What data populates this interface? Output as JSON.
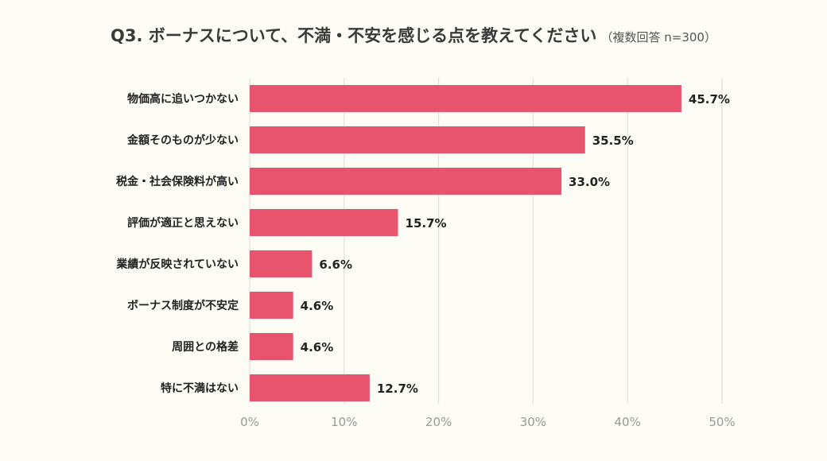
{
  "chart_data": {
    "type": "bar",
    "orientation": "horizontal",
    "title": "Q3. ボーナスについて、不満・不安を感じる点を教えてください",
    "subtitle": "（複数回答 n=300）",
    "categories": [
      "物価高に追いつかない",
      "金額そのものが少ない",
      "税金・社会保険料が高い",
      "評価が適正と思えない",
      "業績が反映されていない",
      "ボーナス制度が不安定",
      "周囲との格差",
      "特に不満はない"
    ],
    "values": [
      45.7,
      35.5,
      33.0,
      15.7,
      6.6,
      4.6,
      4.6,
      12.7
    ],
    "value_labels": [
      "45.7%",
      "35.5%",
      "33.0%",
      "15.7%",
      "6.6%",
      "4.6%",
      "4.6%",
      "12.7%"
    ],
    "xlim": [
      0,
      50
    ],
    "xticks": [
      0,
      10,
      20,
      30,
      40,
      50
    ],
    "xtick_labels": [
      "0%",
      "10%",
      "20%",
      "30%",
      "40%",
      "50%"
    ],
    "grid": true,
    "bar_color": "#e8546e"
  }
}
